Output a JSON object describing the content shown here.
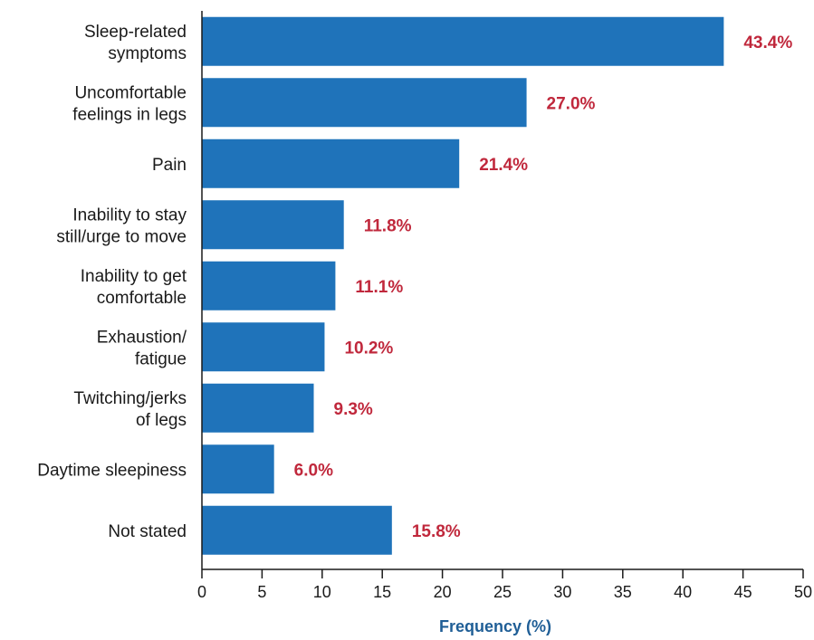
{
  "chart_data": {
    "type": "bar",
    "orientation": "horizontal",
    "title": "",
    "xlabel": "Frequency (%)",
    "ylabel": "",
    "xlim": [
      0,
      50
    ],
    "xticks": [
      0,
      5,
      10,
      15,
      20,
      25,
      30,
      35,
      40,
      45,
      50
    ],
    "grid": false,
    "categories": [
      [
        "Sleep-related",
        "symptoms"
      ],
      [
        "Uncomfortable",
        "feelings in legs"
      ],
      [
        "Pain"
      ],
      [
        "Inability to stay",
        "still/urge to move"
      ],
      [
        "Inability to get",
        "comfortable"
      ],
      [
        "Exhaustion/",
        "fatigue"
      ],
      [
        "Twitching/jerks",
        "of legs"
      ],
      [
        "Daytime sleepiness"
      ],
      [
        "Not stated"
      ]
    ],
    "values": [
      43.4,
      27.0,
      21.4,
      11.8,
      11.1,
      10.2,
      9.3,
      6.0,
      15.8
    ],
    "value_labels": [
      "43.4%",
      "27.0%",
      "21.4%",
      "11.8%",
      "11.1%",
      "10.2%",
      "9.3%",
      "6.0%",
      "15.8%"
    ],
    "colors": {
      "bar": "#1f73ba",
      "value_label": "#c0283c",
      "axis_title": "#1f5e96",
      "axis_line": "#1a1a1a"
    }
  }
}
